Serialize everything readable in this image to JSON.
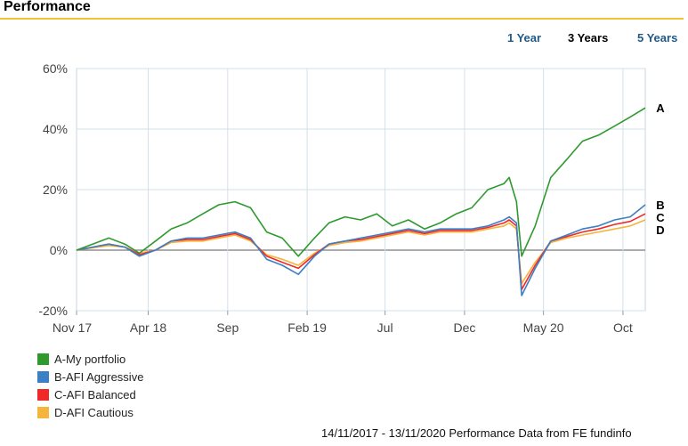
{
  "page": {
    "title": "Performance",
    "footer": "14/11/2017 - 13/11/2020 Performance Data from FE fundinfo"
  },
  "periods": [
    {
      "label": "1 Year",
      "active": false
    },
    {
      "label": "3 Years",
      "active": true
    },
    {
      "label": "5 Years",
      "active": false
    }
  ],
  "colors": {
    "accent_rule": "#f2c230",
    "link": "#1f5a8a",
    "series": [
      "#2e9a2e",
      "#3b7fc4",
      "#f02828",
      "#f5b43c"
    ]
  },
  "chart_data": {
    "type": "line",
    "title": "",
    "xlabel": "",
    "ylabel": "",
    "x_range": [
      "2017-11-14",
      "2020-11-13"
    ],
    "x_ticks": [
      {
        "date": "2017-11-01",
        "label": "Nov 17"
      },
      {
        "date": "2018-04-01",
        "label": "Apr 18"
      },
      {
        "date": "2018-09-01",
        "label": "Sep"
      },
      {
        "date": "2019-02-01",
        "label": "Feb 19"
      },
      {
        "date": "2019-07-01",
        "label": "Jul"
      },
      {
        "date": "2019-12-01",
        "label": "Dec"
      },
      {
        "date": "2020-05-01",
        "label": "May 20"
      },
      {
        "date": "2020-10-01",
        "label": "Oct"
      }
    ],
    "y_ticks": [
      -20,
      0,
      20,
      40,
      60
    ],
    "y_tick_labels": [
      "-20%",
      "0%",
      "20%",
      "40%",
      "60%"
    ],
    "ylim": [
      -20,
      60
    ],
    "grid": true,
    "legend_position": "bottom-left",
    "dates": [
      "2017-11-14",
      "2017-12-15",
      "2018-01-15",
      "2018-02-15",
      "2018-03-15",
      "2018-04-15",
      "2018-05-15",
      "2018-06-15",
      "2018-07-15",
      "2018-08-15",
      "2018-09-15",
      "2018-10-15",
      "2018-11-15",
      "2018-12-15",
      "2019-01-15",
      "2019-02-15",
      "2019-03-15",
      "2019-04-15",
      "2019-05-15",
      "2019-06-15",
      "2019-07-15",
      "2019-08-15",
      "2019-09-15",
      "2019-10-15",
      "2019-11-15",
      "2019-12-15",
      "2020-01-15",
      "2020-02-15",
      "2020-02-25",
      "2020-03-10",
      "2020-03-20",
      "2020-04-15",
      "2020-05-15",
      "2020-06-15",
      "2020-07-15",
      "2020-08-15",
      "2020-09-15",
      "2020-10-15",
      "2020-11-13"
    ],
    "series": [
      {
        "name": "A-My portfolio",
        "end_label": "A",
        "values": [
          0,
          2,
          4,
          2,
          -1,
          3,
          7,
          9,
          12,
          15,
          16,
          14,
          6,
          4,
          -2,
          4,
          9,
          11,
          10,
          12,
          8,
          10,
          7,
          9,
          12,
          14,
          20,
          22,
          24,
          16,
          -2,
          8,
          24,
          30,
          36,
          38,
          41,
          44,
          47
        ]
      },
      {
        "name": "B-AFI Aggressive",
        "end_label": "B",
        "values": [
          0,
          1,
          2,
          1,
          -2,
          0,
          3,
          4,
          4,
          5,
          6,
          4,
          -3,
          -5,
          -8,
          -2,
          2,
          3,
          4,
          5,
          6,
          7,
          6,
          7,
          7,
          7,
          8,
          10,
          11,
          9,
          -15,
          -6,
          3,
          5,
          7,
          8,
          10,
          11,
          15
        ]
      },
      {
        "name": "C-AFI Balanced",
        "end_label": "C",
        "values": [
          0,
          1,
          2,
          1,
          -1.5,
          0,
          3,
          3.5,
          3.5,
          4.5,
          5.5,
          3.5,
          -2,
          -4,
          -6,
          -1.5,
          2,
          3,
          3.5,
          4.5,
          5.5,
          6.5,
          5.5,
          6.5,
          6.5,
          6.5,
          7.5,
          9,
          10,
          8,
          -13,
          -5,
          3,
          4.5,
          6,
          7,
          8.5,
          9.5,
          12
        ]
      },
      {
        "name": "D-AFI Cautious",
        "end_label": "D",
        "values": [
          0,
          0.8,
          1.5,
          1,
          -1,
          0,
          2.5,
          3,
          3,
          4,
          5,
          3,
          -1.5,
          -3,
          -5,
          -1,
          1.5,
          2.5,
          3,
          4,
          5,
          6,
          5,
          6,
          6,
          6,
          7,
          8,
          9,
          7,
          -11,
          -4,
          2.5,
          4,
          5,
          6,
          7,
          8,
          10
        ]
      }
    ]
  }
}
